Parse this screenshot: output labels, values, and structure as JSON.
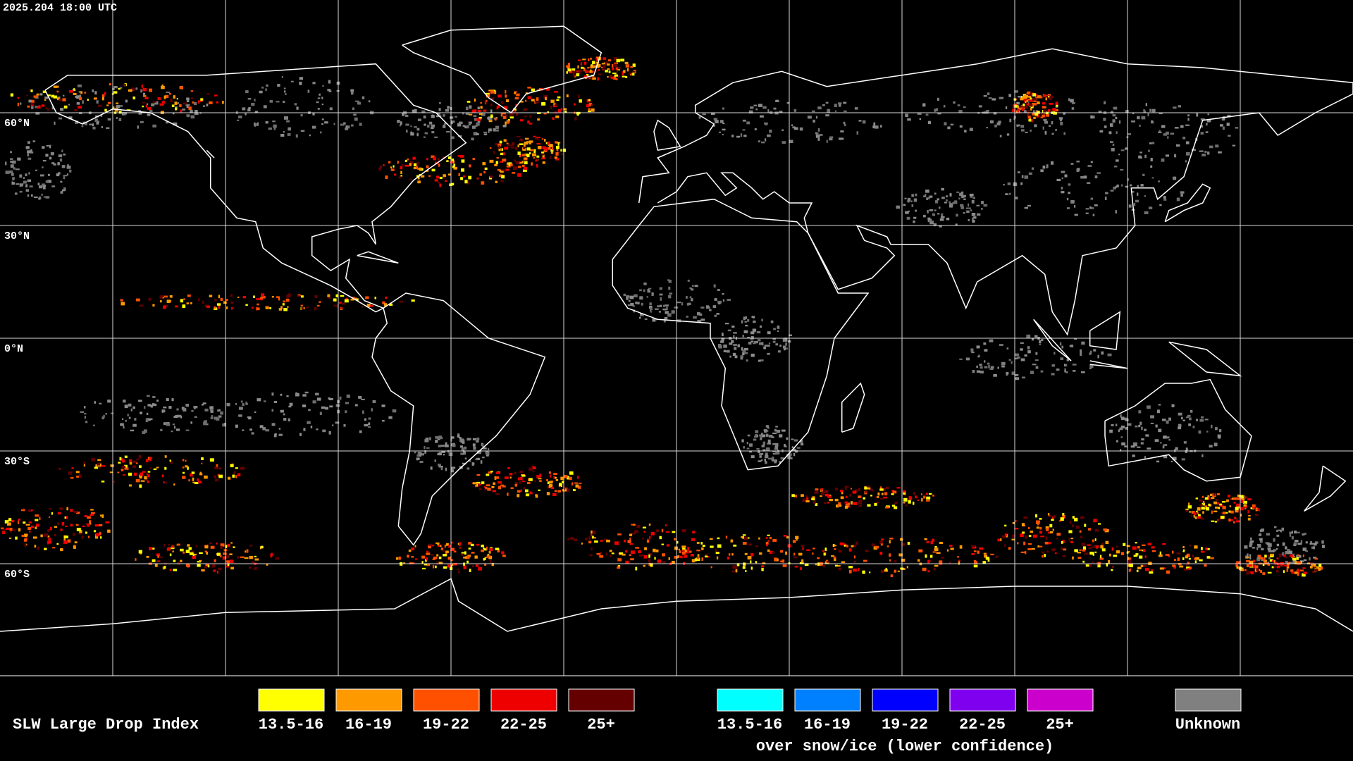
{
  "header": {
    "timestamp": "2025.204 18:00 UTC"
  },
  "map": {
    "latitude_labels": [
      "60°N",
      "30°N",
      "0°N",
      "30°S",
      "60°S"
    ]
  },
  "legend": {
    "title": "SLW Large Drop Index",
    "groups": [
      {
        "items": [
          {
            "label": "13.5-16",
            "color": "#ffff00"
          },
          {
            "label": "16-19",
            "color": "#ff9900"
          },
          {
            "label": "19-22",
            "color": "#ff5000"
          },
          {
            "label": "22-25",
            "color": "#ee0000"
          },
          {
            "label": "25+",
            "color": "#650000"
          }
        ]
      },
      {
        "items": [
          {
            "label": "13.5-16",
            "color": "#00ffff"
          },
          {
            "label": "16-19",
            "color": "#0080ff"
          },
          {
            "label": "19-22",
            "color": "#0000ff"
          },
          {
            "label": "22-25",
            "color": "#7f00ee"
          },
          {
            "label": "25+",
            "color": "#cc00cc"
          }
        ],
        "caption": "over snow/ice (lower confidence)"
      }
    ],
    "unknown": {
      "label": "Unknown",
      "color": "#808080"
    }
  }
}
